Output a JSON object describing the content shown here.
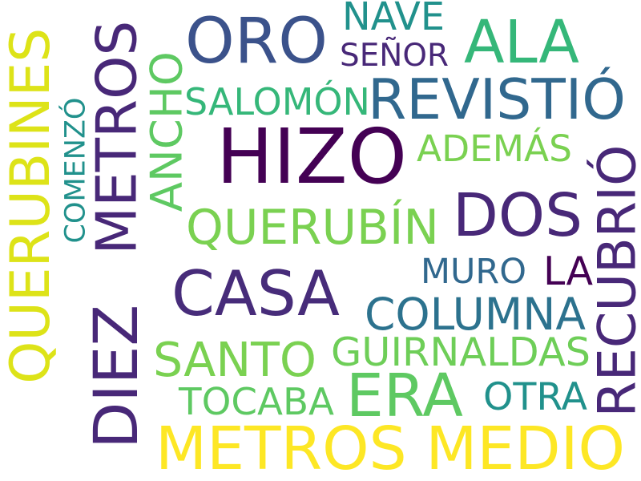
{
  "words": [
    {
      "id": "oro",
      "text": "ORO",
      "color": "#3b528b"
    },
    {
      "id": "nave",
      "text": "NAVE",
      "color": "#21918c"
    },
    {
      "id": "ala",
      "text": "ALA",
      "color": "#35b779"
    },
    {
      "id": "senor",
      "text": "SEÑOR",
      "color": "#482878"
    },
    {
      "id": "salomon",
      "text": "SALOMÓN",
      "color": "#35b779"
    },
    {
      "id": "revistio",
      "text": "REVISTIÓ",
      "color": "#31688e"
    },
    {
      "id": "hizo",
      "text": "HIZO",
      "color": "#440154"
    },
    {
      "id": "ademas",
      "text": "ADEMÁS",
      "color": "#7ad151"
    },
    {
      "id": "querubin",
      "text": "QUERUBÍN",
      "color": "#7ad151"
    },
    {
      "id": "dos",
      "text": "DOS",
      "color": "#482878"
    },
    {
      "id": "casa",
      "text": "CASA",
      "color": "#472c7a"
    },
    {
      "id": "muro",
      "text": "MURO",
      "color": "#31688e"
    },
    {
      "id": "la",
      "text": "LA",
      "color": "#440154"
    },
    {
      "id": "columna",
      "text": "COLUMNA",
      "color": "#2c728e"
    },
    {
      "id": "santo",
      "text": "SANTO",
      "color": "#7ad151"
    },
    {
      "id": "guirnaldas",
      "text": "GUIRNALDAS",
      "color": "#6ece58"
    },
    {
      "id": "era",
      "text": "ERA",
      "color": "#5ec962"
    },
    {
      "id": "tocaba",
      "text": "TOCABA",
      "color": "#5ec962"
    },
    {
      "id": "otra",
      "text": "OTRA",
      "color": "#21918c"
    },
    {
      "id": "metros-medio",
      "text": "METROS MEDIO",
      "color": "#fde725"
    },
    {
      "id": "querubines",
      "text": "QUERUBINES",
      "color": "#dde318"
    },
    {
      "id": "comenzo",
      "text": "COMENZÓ",
      "color": "#21918c"
    },
    {
      "id": "metros",
      "text": "METROS",
      "color": "#482878"
    },
    {
      "id": "ancho",
      "text": "ANCHO",
      "color": "#5ec962"
    },
    {
      "id": "diez",
      "text": "DIEZ",
      "color": "#482878"
    },
    {
      "id": "recubrio",
      "text": "RECUBRIÓ",
      "color": "#482878"
    }
  ]
}
